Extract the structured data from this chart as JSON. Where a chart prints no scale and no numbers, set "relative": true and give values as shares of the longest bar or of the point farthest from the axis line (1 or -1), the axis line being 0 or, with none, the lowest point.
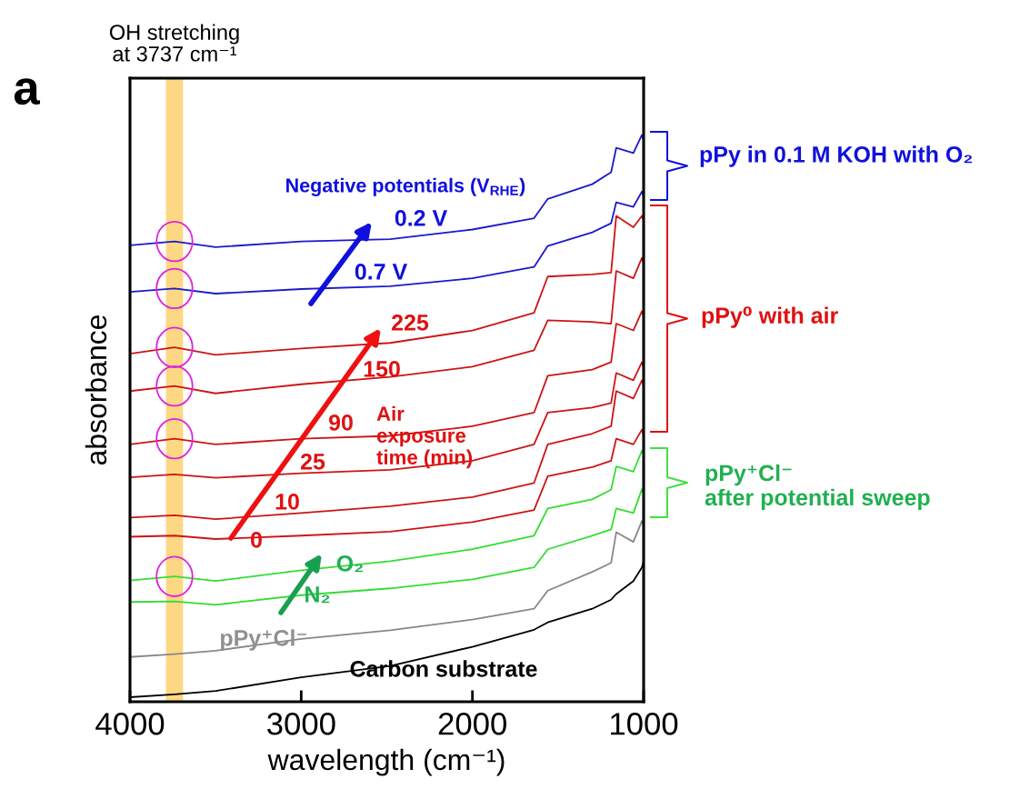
{
  "chart_data": {
    "type": "line",
    "relative": true,
    "xlabel": "wavelength (cm⁻¹)",
    "ylabel": "absorbance",
    "x": [
      4000,
      3740,
      3500,
      3000,
      2480,
      2000,
      1640,
      1560,
      1300,
      1190,
      1160,
      1060,
      1010,
      1000
    ],
    "xlim": [
      4000,
      1000
    ],
    "xticks": [
      4000,
      3000,
      2000,
      1000
    ],
    "tick_labels": "x",
    "grid": false,
    "legend": false,
    "series": [
      {
        "color": "#1a1acc",
        "values": [
          0.805,
          0.812,
          0.802,
          0.812,
          0.816,
          0.833,
          0.853,
          0.887,
          0.913,
          0.934,
          0.977,
          0.968,
          1.0,
          0.99
        ]
      },
      {
        "color": "#1a1acc",
        "values": [
          0.723,
          0.729,
          0.72,
          0.728,
          0.733,
          0.747,
          0.767,
          0.804,
          0.828,
          0.844,
          0.881,
          0.873,
          0.9,
          0.892
        ]
      },
      {
        "color": "#cc1515",
        "values": [
          0.614,
          0.625,
          0.612,
          0.623,
          0.633,
          0.655,
          0.686,
          0.75,
          0.754,
          0.757,
          0.857,
          0.837,
          0.857,
          0.849
        ]
      },
      {
        "color": "#cc1515",
        "values": [
          0.548,
          0.557,
          0.544,
          0.56,
          0.573,
          0.591,
          0.62,
          0.673,
          0.67,
          0.667,
          0.76,
          0.747,
          0.783,
          0.773
        ]
      },
      {
        "color": "#cc1515",
        "values": [
          0.454,
          0.464,
          0.454,
          0.464,
          0.469,
          0.486,
          0.51,
          0.575,
          0.586,
          0.599,
          0.667,
          0.655,
          0.689,
          0.68
        ]
      },
      {
        "color": "#cc1515",
        "values": [
          0.396,
          0.401,
          0.395,
          0.403,
          0.409,
          0.425,
          0.454,
          0.51,
          0.519,
          0.527,
          0.58,
          0.567,
          0.599,
          0.589
        ]
      },
      {
        "color": "#cc1515",
        "values": [
          0.325,
          0.329,
          0.322,
          0.333,
          0.345,
          0.361,
          0.386,
          0.454,
          0.473,
          0.486,
          0.548,
          0.535,
          0.567,
          0.557
        ]
      },
      {
        "color": "#cc1515",
        "values": [
          0.291,
          0.293,
          0.287,
          0.293,
          0.3,
          0.317,
          0.338,
          0.398,
          0.414,
          0.425,
          0.464,
          0.454,
          0.48,
          0.47
        ]
      },
      {
        "color": "#33dd33",
        "values": [
          0.214,
          0.221,
          0.213,
          0.232,
          0.248,
          0.269,
          0.293,
          0.341,
          0.357,
          0.374,
          0.415,
          0.406,
          0.443,
          0.435
        ]
      },
      {
        "color": "#33dd33",
        "values": [
          0.176,
          0.177,
          0.171,
          0.188,
          0.2,
          0.216,
          0.237,
          0.269,
          0.293,
          0.304,
          0.341,
          0.333,
          0.375,
          0.366
        ]
      },
      {
        "color": "#888888",
        "values": [
          0.079,
          0.084,
          0.09,
          0.111,
          0.126,
          0.145,
          0.164,
          0.196,
          0.229,
          0.245,
          0.299,
          0.282,
          0.319,
          0.309
        ]
      },
      {
        "color": "#000000",
        "values": [
          0.008,
          0.013,
          0.019,
          0.043,
          0.063,
          0.097,
          0.127,
          0.14,
          0.164,
          0.18,
          0.19,
          0.213,
          0.237,
          0.248
        ]
      }
    ],
    "bands": [
      {
        "axis": "x",
        "from": 3790,
        "to": 3690,
        "label": "OH stretching\nat 3737 cm⁻¹",
        "color": "#fdd884"
      }
    ],
    "annotations": [
      "a",
      "Negative potentials (V$_{RHE}$)",
      "0.2 V",
      "0.7 V",
      "225",
      "150",
      "90",
      "25",
      "10",
      "0",
      "Air\nexposure\ntime (min)",
      "O₂",
      "N₂",
      "pPy⁺Cl⁻",
      "Carbon substrate",
      "pPy in 0.1 M KOH with O₂",
      "pPy⁰ with air",
      "pPy⁺Cl⁻\nafter potential sweep"
    ]
  }
}
